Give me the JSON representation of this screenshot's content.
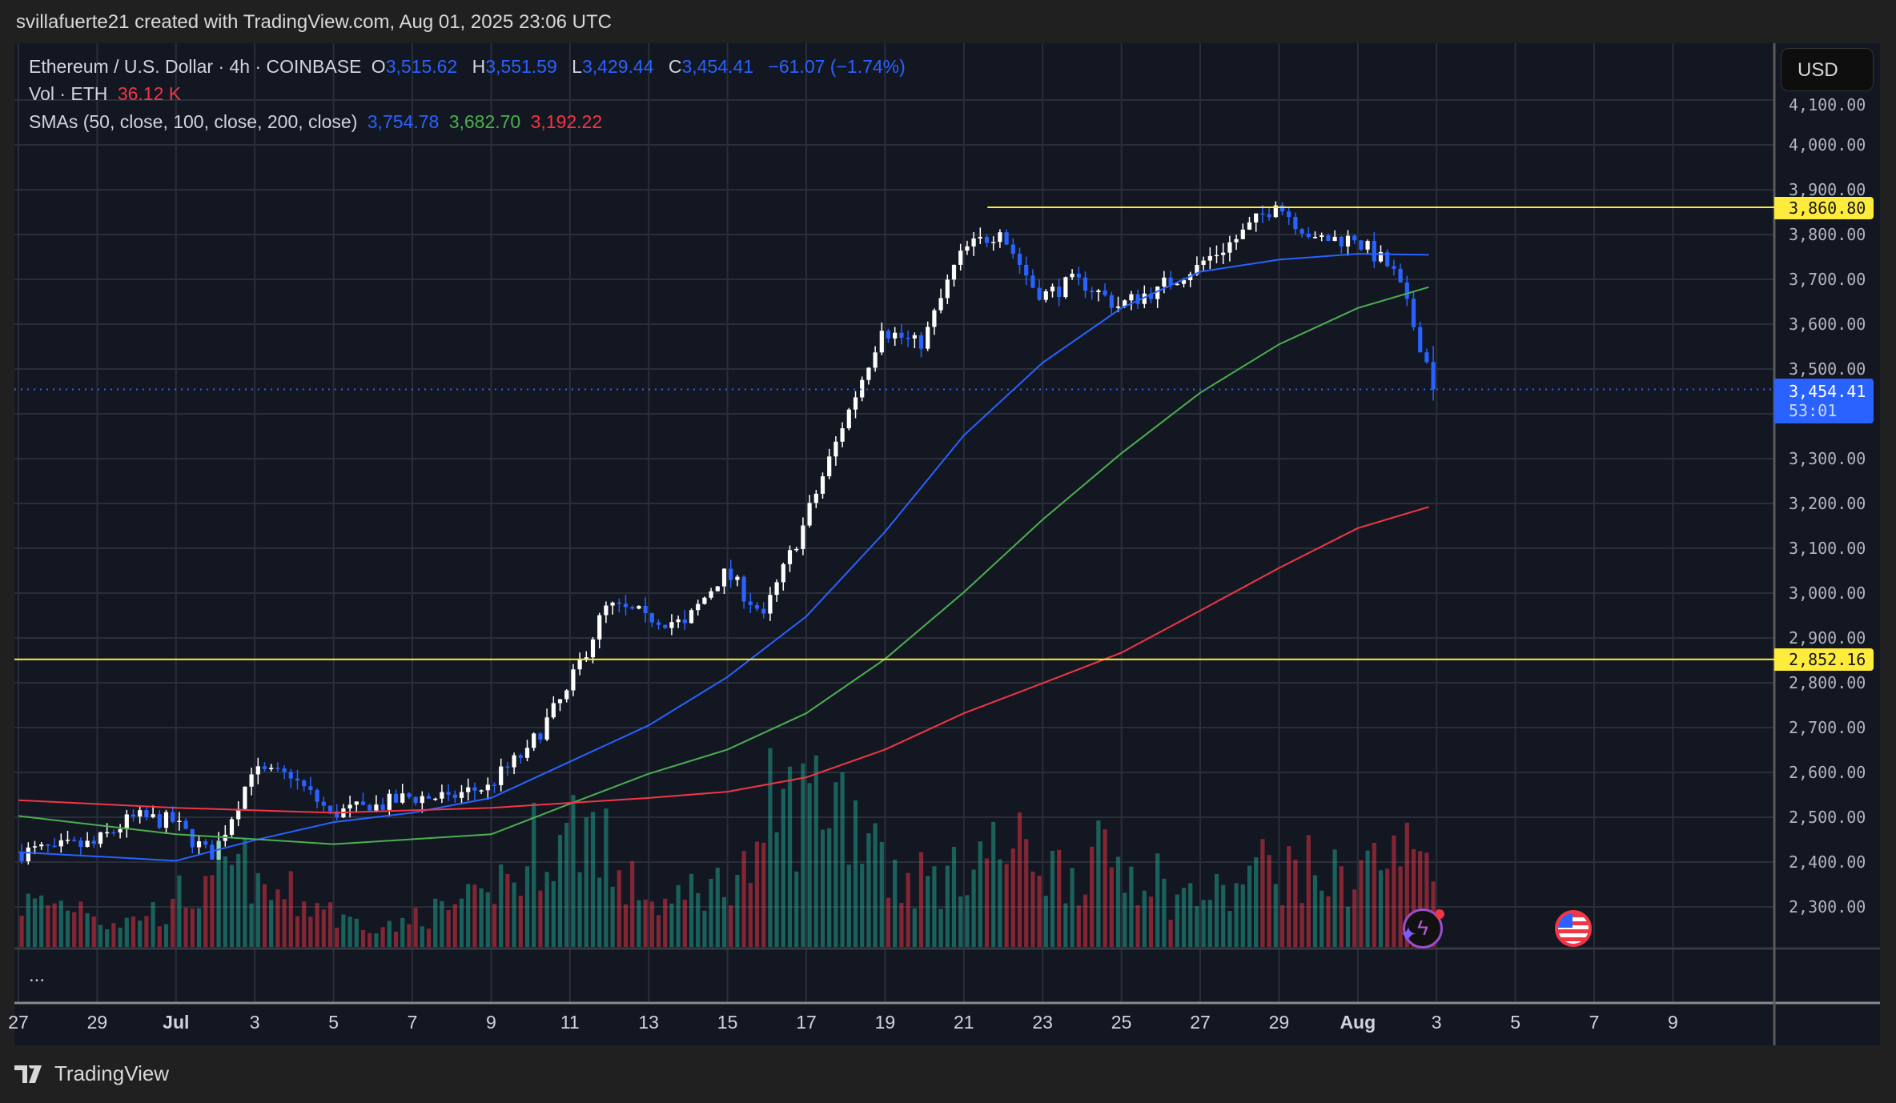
{
  "credit": "svillafuerte21 created with TradingView.com, Aug 01, 2025 23:06 UTC",
  "legend": {
    "symbol": "Ethereum / U.S. Dollar · 4h · COINBASE",
    "o_label": "O",
    "o": "3,515.62",
    "h_label": "H",
    "h": "3,551.59",
    "l_label": "L",
    "l": "3,429.44",
    "c_label": "C",
    "c": "3,454.41",
    "change": "−61.07 (−1.74%)",
    "vol_label": "Vol · ETH",
    "vol": "36.12 K",
    "sma_label": "SMAs (50, close, 100, close, 200, close)",
    "sma50": "3,754.78",
    "sma100": "3,682.70",
    "sma200": "3,192.22"
  },
  "currency_button": "USD",
  "price_axis": [
    "4,100.00",
    "4,000.00",
    "3,900.00",
    "3,800.00",
    "3,700.00",
    "3,600.00",
    "3,500.00",
    "3,300.00",
    "3,200.00",
    "3,100.00",
    "3,000.00",
    "2,900.00",
    "2,800.00",
    "2,700.00",
    "2,600.00",
    "2,500.00",
    "2,400.00",
    "2,300.00"
  ],
  "badges": {
    "resistance": "3,860.80",
    "support": "2,852.16",
    "last_price": "3,454.41",
    "countdown": "53:01"
  },
  "time_axis": [
    "27",
    "29",
    "Jul",
    "3",
    "5",
    "7",
    "9",
    "11",
    "13",
    "15",
    "17",
    "19",
    "21",
    "23",
    "25",
    "27",
    "29",
    "Aug",
    "3",
    "5",
    "7",
    "9"
  ],
  "more_label": "...",
  "brand": "TradingView",
  "colors": {
    "up": "#ffffff",
    "down": "#2962ff",
    "sma50": "#2962ff",
    "sma100": "#4caf50",
    "sma200": "#f23645",
    "hline": "#ffeb3b",
    "vol_up": "#22ab94",
    "vol_down": "#f23645"
  },
  "chart_data": {
    "type": "candlestick",
    "interval": "4h",
    "ylim": [
      2200,
      4150
    ],
    "x_start": "2025-06-27",
    "daily_close_est": [
      2430,
      2440,
      2500,
      2490,
      2410,
      2600,
      2590,
      2510,
      2520,
      2545,
      2545,
      2570,
      2650,
      2780,
      2970,
      2950,
      2930,
      3050,
      2950,
      3150,
      3370,
      3590,
      3550,
      3760,
      3810,
      3660,
      3700,
      3640,
      3680,
      3730,
      3790,
      3870,
      3790,
      3790,
      3720,
      3454.41
    ],
    "daily_volume_k_est": [
      25,
      25,
      15,
      20,
      30,
      45,
      30,
      25,
      15,
      12,
      20,
      25,
      40,
      60,
      70,
      35,
      25,
      35,
      45,
      80,
      90,
      75,
      40,
      40,
      55,
      55,
      45,
      50,
      45,
      30,
      30,
      45,
      45,
      40,
      50,
      55
    ],
    "last_candle": {
      "open": 3515.62,
      "high": 3551.59,
      "low": 3429.44,
      "close": 3454.41,
      "volume_k": 36.12
    },
    "sma50": {
      "days": [
        0,
        4,
        6,
        8,
        10,
        12,
        14,
        16,
        18,
        20,
        22,
        24,
        26,
        28,
        30,
        32,
        34,
        35.8
      ],
      "values": [
        2422,
        2403,
        2449,
        2489,
        2510,
        2543,
        2624,
        2705,
        2813,
        2948,
        3137,
        3352,
        3514,
        3636,
        3717,
        3744,
        3757,
        3754.78
      ]
    },
    "sma100": {
      "days": [
        0,
        4,
        8,
        12,
        14,
        16,
        18,
        20,
        22,
        24,
        26,
        28,
        30,
        32,
        34,
        35.8
      ],
      "values": [
        2503,
        2462,
        2440,
        2462,
        2530,
        2597,
        2651,
        2732,
        2853,
        3002,
        3164,
        3312,
        3447,
        3555,
        3636,
        3682.7
      ]
    },
    "sma200": {
      "days": [
        0,
        4,
        8,
        12,
        16,
        18,
        20,
        22,
        24,
        26,
        28,
        30,
        32,
        34,
        35.8
      ],
      "values": [
        2538,
        2521,
        2510,
        2521,
        2543,
        2557,
        2589,
        2651,
        2732,
        2799,
        2867,
        2961,
        3056,
        3145,
        3192.22
      ]
    },
    "horizontal_lines": [
      {
        "price": 3860.8,
        "from_day": 24.6
      },
      {
        "price": 2852.16
      }
    ]
  }
}
